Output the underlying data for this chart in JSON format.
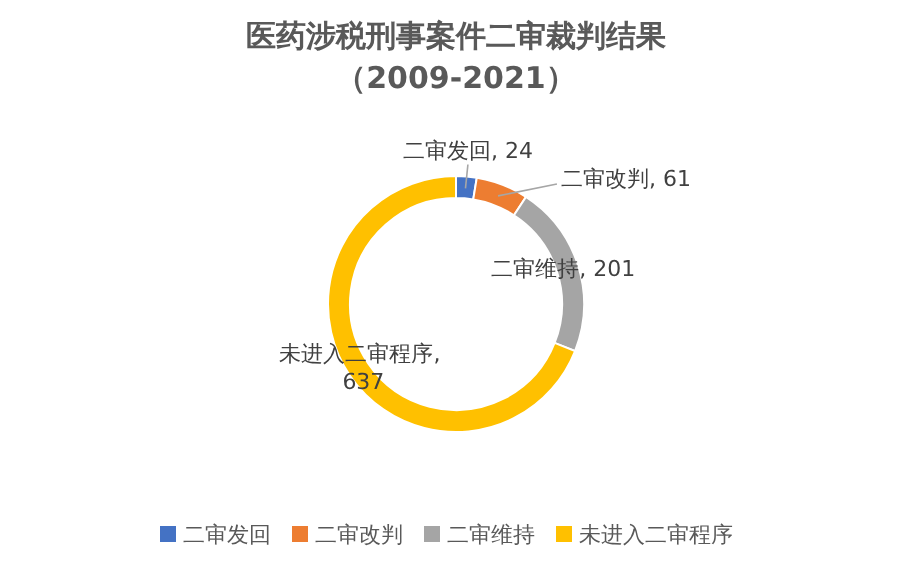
{
  "chart_data": {
    "type": "donut",
    "title": "医药涉税刑事案件二审裁判结果",
    "subtitle": "（2009-2021）",
    "categories": [
      "二审发回",
      "二审改判",
      "二审维持",
      "未进入二审程序"
    ],
    "values": [
      24,
      61,
      201,
      637
    ],
    "colors": [
      "#4472c4",
      "#ed7d31",
      "#a5a5a5",
      "#ffc000"
    ],
    "value_labels": [
      ", 24",
      ", 61",
      ", 201",
      ", 637"
    ],
    "legend": "bottom"
  }
}
